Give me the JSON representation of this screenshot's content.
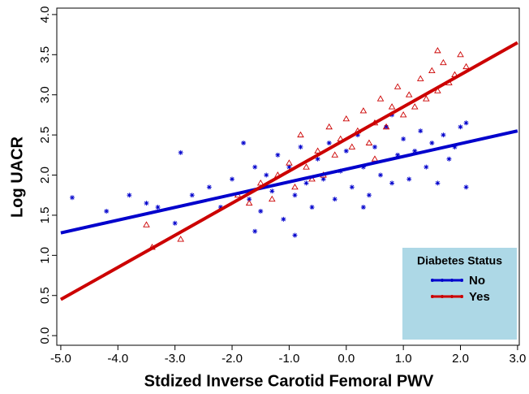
{
  "chart_data": {
    "type": "scatter",
    "x_label": "Stdized Inverse Carotid Femoral PWV",
    "y_label": "Log UACR",
    "xlim": [
      -5.07,
      3.03
    ],
    "ylim": [
      -0.12,
      4.08
    ],
    "xticks": [
      {
        "value": -5,
        "label": "-5.0"
      },
      {
        "value": -4,
        "label": "-4.0"
      },
      {
        "value": -3,
        "label": "-3.0"
      },
      {
        "value": -2,
        "label": "-2.0"
      },
      {
        "value": -1,
        "label": "-1.0"
      },
      {
        "value": 0,
        "label": "0.0"
      },
      {
        "value": 1,
        "label": "1.0"
      },
      {
        "value": 2,
        "label": "2.0"
      },
      {
        "value": 3,
        "label": "3.0"
      }
    ],
    "yticks": [
      {
        "value": 0,
        "label": "0.0"
      },
      0.5,
      {
        "value": 1,
        "label": "1.0"
      },
      1.5,
      {
        "value": 2,
        "label": "2.0"
      },
      2.5,
      {
        "value": 3,
        "label": "3.0"
      },
      3.5,
      {
        "value": 4,
        "label": "4.0"
      }
    ],
    "legend_title": "Diabetes Status",
    "legend_position": "lower-right",
    "legend_background": "#add8e6",
    "series": [
      {
        "name": "No",
        "color": "#0000cc",
        "marker": "asterisk",
        "x": [
          -4.8,
          -4.2,
          -3.8,
          -3.5,
          -3.3,
          -3.0,
          -2.9,
          -2.7,
          -2.4,
          -2.2,
          -2.0,
          -1.8,
          -1.7,
          -1.6,
          -1.5,
          -1.4,
          -1.3,
          -1.2,
          -1.1,
          -1.0,
          -0.9,
          -0.8,
          -0.7,
          -0.6,
          -0.5,
          -0.4,
          -0.3,
          -0.2,
          -0.1,
          0.0,
          0.1,
          0.2,
          0.3,
          0.4,
          0.5,
          0.6,
          0.7,
          0.8,
          0.9,
          1.0,
          1.1,
          1.2,
          1.3,
          1.4,
          1.5,
          1.6,
          1.7,
          1.8,
          1.9,
          2.0,
          2.1,
          2.1,
          -1.6,
          -0.9,
          0.3,
          0.8
        ],
        "y": [
          1.72,
          1.55,
          1.75,
          1.65,
          1.6,
          1.4,
          2.28,
          1.75,
          1.85,
          1.6,
          1.95,
          2.4,
          1.7,
          2.1,
          1.55,
          2.0,
          1.8,
          2.25,
          1.45,
          2.1,
          1.75,
          2.35,
          1.9,
          1.6,
          2.2,
          1.95,
          2.4,
          1.7,
          2.05,
          2.3,
          1.85,
          2.5,
          2.1,
          1.75,
          2.35,
          2.0,
          2.6,
          1.9,
          2.25,
          2.45,
          1.95,
          2.3,
          2.55,
          2.1,
          2.4,
          1.9,
          2.5,
          2.2,
          2.35,
          2.6,
          1.85,
          2.65,
          1.3,
          1.25,
          1.6,
          2.75
        ],
        "fit_x": [
          -5,
          3
        ],
        "fit_y": [
          1.28,
          2.55
        ]
      },
      {
        "name": "Yes",
        "color": "#cc0000",
        "marker": "triangle",
        "x": [
          -3.5,
          -3.4,
          -2.9,
          -1.9,
          -1.7,
          -1.5,
          -1.3,
          -1.2,
          -1.0,
          -0.9,
          -0.8,
          -0.7,
          -0.5,
          -0.4,
          -0.3,
          -0.2,
          -0.1,
          0.0,
          0.1,
          0.2,
          0.3,
          0.4,
          0.5,
          0.6,
          0.7,
          0.8,
          0.9,
          1.0,
          1.1,
          1.2,
          1.3,
          1.4,
          1.5,
          1.6,
          1.7,
          1.8,
          1.9,
          2.0,
          2.1,
          1.6,
          0.5,
          -0.6
        ],
        "y": [
          1.38,
          1.1,
          1.2,
          1.75,
          1.65,
          1.9,
          1.7,
          2.0,
          2.15,
          1.85,
          2.5,
          2.1,
          2.3,
          2.0,
          2.6,
          2.25,
          2.45,
          2.7,
          2.35,
          2.55,
          2.8,
          2.4,
          2.65,
          2.95,
          2.6,
          2.85,
          3.1,
          2.75,
          3.0,
          2.85,
          3.2,
          2.95,
          3.3,
          3.05,
          3.4,
          3.15,
          3.25,
          3.5,
          3.35,
          3.55,
          2.2,
          1.95
        ],
        "fit_x": [
          -5,
          3
        ],
        "fit_y": [
          0.45,
          3.65
        ]
      }
    ]
  }
}
